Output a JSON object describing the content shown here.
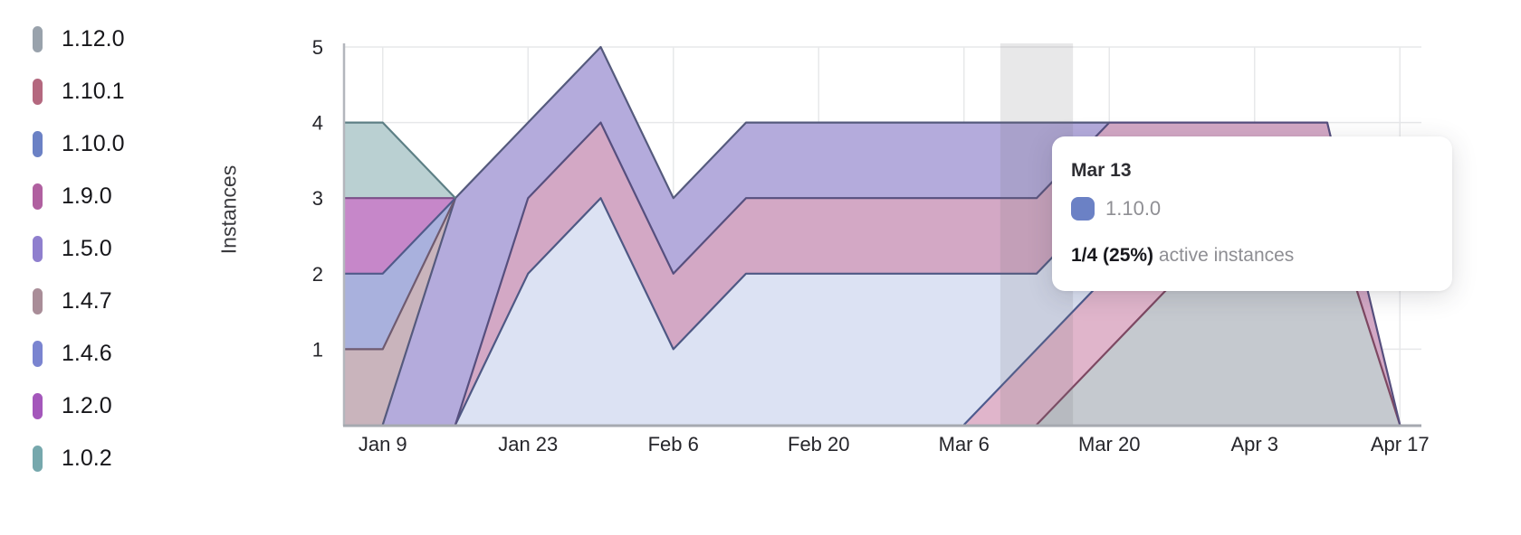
{
  "legend": {
    "items": [
      {
        "label": "1.12.0",
        "color": "#99a2ac"
      },
      {
        "label": "1.10.1",
        "color": "#b4687f"
      },
      {
        "label": "1.10.0",
        "color": "#6b81c5"
      },
      {
        "label": "1.9.0",
        "color": "#b060a0"
      },
      {
        "label": "1.5.0",
        "color": "#8f7fce"
      },
      {
        "label": "1.4.7",
        "color": "#a98d98"
      },
      {
        "label": "1.4.6",
        "color": "#7a84d0"
      },
      {
        "label": "1.2.0",
        "color": "#a457bb"
      },
      {
        "label": "1.0.2",
        "color": "#76a8ad"
      }
    ]
  },
  "y_axis": {
    "title": "Instances",
    "ticks": [
      5,
      4,
      3,
      2,
      1
    ]
  },
  "x_axis": {
    "ticks": [
      "Jan 9",
      "Jan 23",
      "Feb 6",
      "Feb 20",
      "Mar 6",
      "Mar 20",
      "Apr 3",
      "Apr 17"
    ]
  },
  "tooltip": {
    "date": "Mar 13",
    "series": "1.10.0",
    "swatch_color": "#6b81c5",
    "value": "1/4 (25%)",
    "caption": "active instances"
  },
  "chart_data": {
    "type": "area",
    "stacked": true,
    "title": "",
    "xlabel": "",
    "ylabel": "Instances",
    "ylim": [
      0,
      5
    ],
    "grid": true,
    "legend_position": "left",
    "x": [
      "Jan 2",
      "Jan 9",
      "Jan 16",
      "Jan 23",
      "Jan 30",
      "Feb 6",
      "Feb 13",
      "Feb 20",
      "Feb 27",
      "Mar 6",
      "Mar 13",
      "Mar 20",
      "Mar 27",
      "Apr 3",
      "Apr 10",
      "Apr 17"
    ],
    "series": [
      {
        "name": "1.12.0",
        "values": [
          0,
          0,
          0,
          0,
          0,
          0,
          0,
          0,
          0,
          0,
          0,
          1,
          2,
          3,
          3,
          0
        ],
        "fill": "#c5c9cf",
        "line": "#7d4862"
      },
      {
        "name": "1.10.1",
        "values": [
          0,
          0,
          0,
          0,
          0,
          0,
          0,
          0,
          0,
          0,
          1,
          1,
          1,
          0,
          0,
          0
        ],
        "fill": "#e0b5cb",
        "line": "#4d5a8e"
      },
      {
        "name": "1.10.0",
        "values": [
          0,
          0,
          0,
          2,
          3,
          1,
          2,
          2,
          2,
          2,
          1,
          1,
          0,
          0,
          0,
          0
        ],
        "fill": "#dce2f3",
        "line": "#4e5884"
      },
      {
        "name": "1.9.0",
        "values": [
          0,
          0,
          0,
          1,
          1,
          1,
          1,
          1,
          1,
          1,
          1,
          1,
          1,
          1,
          1,
          0
        ],
        "fill": "#d3a8c5",
        "line": "#564f7e"
      },
      {
        "name": "1.5.0",
        "values": [
          0,
          0,
          3,
          1,
          1,
          1,
          1,
          1,
          1,
          1,
          1,
          0,
          0,
          0,
          0,
          0
        ],
        "fill": "#b4abdc",
        "line": "#555a7d"
      },
      {
        "name": "1.4.7",
        "values": [
          1,
          1,
          0,
          0,
          0,
          0,
          0,
          0,
          0,
          0,
          0,
          0,
          0,
          0,
          0,
          0
        ],
        "fill": "#c9b4bc",
        "line": "#6f5b70"
      },
      {
        "name": "1.4.6",
        "values": [
          1,
          1,
          0,
          0,
          0,
          0,
          0,
          0,
          0,
          0,
          0,
          0,
          0,
          0,
          0,
          0
        ],
        "fill": "#a9b1dd",
        "line": "#515a8a"
      },
      {
        "name": "1.2.0",
        "values": [
          1,
          1,
          0,
          0,
          0,
          0,
          0,
          0,
          0,
          0,
          0,
          0,
          0,
          0,
          0,
          0
        ],
        "fill": "#c687c9",
        "line": "#7b4f88"
      },
      {
        "name": "1.0.2",
        "values": [
          1,
          1,
          0,
          0,
          0,
          0,
          0,
          0,
          0,
          0,
          0,
          0,
          0,
          0,
          0,
          0
        ],
        "fill": "#bad0d2",
        "line": "#5d7f85"
      }
    ],
    "hover": {
      "x_label": "Mar 13",
      "x_index": 10,
      "band_color": "rgba(110,112,120,0.16)"
    },
    "annotations": [
      "tooltip at Mar 13: 1.10.0 = 1/4 (25%) active instances"
    ]
  }
}
